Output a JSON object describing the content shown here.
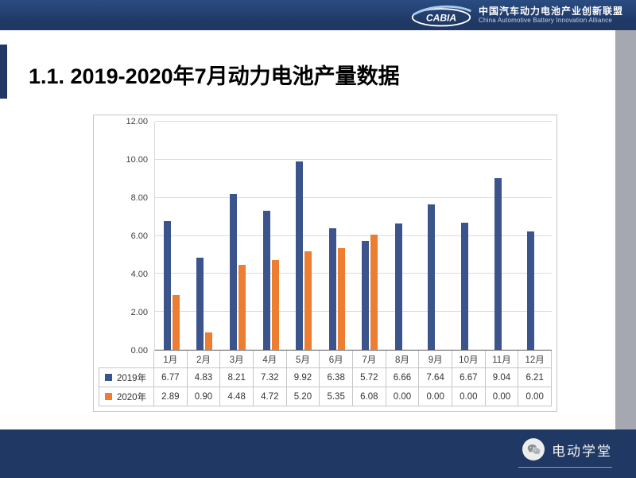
{
  "header": {
    "logo_text": "CABIA",
    "org_cn": "中国汽车动力电池产业创新联盟",
    "org_en": "China Automotive Battery Innovation Alliance"
  },
  "title": "1.1. 2019-2020年7月动力电池产量数据",
  "chart_data": {
    "type": "bar",
    "title": "",
    "categories": [
      "1月",
      "2月",
      "3月",
      "4月",
      "5月",
      "6月",
      "7月",
      "8月",
      "9月",
      "10月",
      "11月",
      "12月"
    ],
    "series": [
      {
        "name": "2019年",
        "color": "#3B548B",
        "values": [
          6.77,
          4.83,
          8.21,
          7.32,
          9.92,
          6.38,
          5.72,
          6.66,
          7.64,
          6.67,
          9.04,
          6.21
        ]
      },
      {
        "name": "2020年",
        "color": "#ED7D31",
        "values": [
          2.89,
          0.9,
          4.48,
          4.72,
          5.2,
          5.35,
          6.08,
          0.0,
          0.0,
          0.0,
          0.0,
          0.0
        ]
      }
    ],
    "xlabel": "",
    "ylabel": "",
    "ylim": [
      0,
      12
    ],
    "ytick_step": 2,
    "yticks": [
      "0.00",
      "2.00",
      "4.00",
      "6.00",
      "8.00",
      "10.00",
      "12.00"
    ],
    "grid": true,
    "legend_position": "left-of-data-table",
    "value_format": "0.00"
  },
  "footer": {
    "brand": "电动学堂"
  },
  "colors": {
    "banner": "#1F3864",
    "side_strip": "#A5A8B0",
    "series_2019": "#3B548B",
    "series_2020": "#ED7D31"
  }
}
